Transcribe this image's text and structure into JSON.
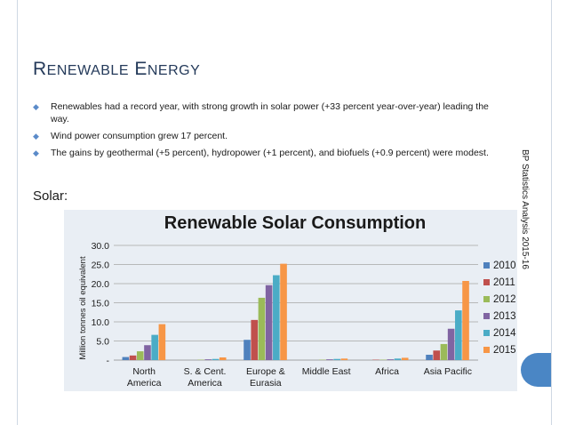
{
  "slide": {
    "title_first_cap": "R",
    "title_first_rest": "ENEWABLE",
    "title_second_cap": "E",
    "title_second_rest": "NERGY",
    "bullet_marker": "◆",
    "bullets": [
      "Renewables had a record year, with strong growth in solar power (+33 percent year-over-year) leading the way.",
      "Wind power consumption grew 17 percent.",
      "The gains by geothermal (+5 percent), hydropower (+1 percent), and biofuels (+0.9 percent) were modest."
    ],
    "section_label": "Solar:",
    "side_note": "BP Statistics Analysis 2015-16"
  },
  "chart_data": {
    "type": "bar",
    "title": "Renewable Solar Consumption",
    "ylabel": "Million tonnes oil equivalent",
    "xlabel": "",
    "ylim": [
      0,
      30
    ],
    "yticks": [
      0,
      5,
      10,
      15,
      20,
      25,
      30
    ],
    "ytick_labels": [
      "-",
      "5.0",
      "10.0",
      "15.0",
      "20.0",
      "25.0",
      "30.0"
    ],
    "categories": [
      [
        "North",
        "America"
      ],
      [
        "S. & Cent.",
        "America"
      ],
      [
        "Europe &",
        "Eurasia"
      ],
      [
        "Middle East"
      ],
      [
        "Africa"
      ],
      [
        "Asia Pacific"
      ]
    ],
    "series": [
      {
        "name": "2010",
        "color": "#4f81bd",
        "values": [
          0.8,
          0.0,
          5.3,
          0.0,
          0.0,
          1.4
        ]
      },
      {
        "name": "2011",
        "color": "#c0504d",
        "values": [
          1.2,
          0.0,
          10.5,
          0.0,
          0.1,
          2.5
        ]
      },
      {
        "name": "2012",
        "color": "#9bbb59",
        "values": [
          2.3,
          0.1,
          16.3,
          0.1,
          0.1,
          4.2
        ]
      },
      {
        "name": "2013",
        "color": "#8064a2",
        "values": [
          3.9,
          0.2,
          19.6,
          0.2,
          0.2,
          8.2
        ]
      },
      {
        "name": "2014",
        "color": "#4bacc6",
        "values": [
          6.6,
          0.3,
          22.2,
          0.3,
          0.4,
          13.0
        ]
      },
      {
        "name": "2015",
        "color": "#f79646",
        "values": [
          9.4,
          0.7,
          25.2,
          0.4,
          0.6,
          20.7
        ]
      }
    ],
    "legend": "right",
    "grid": true
  }
}
